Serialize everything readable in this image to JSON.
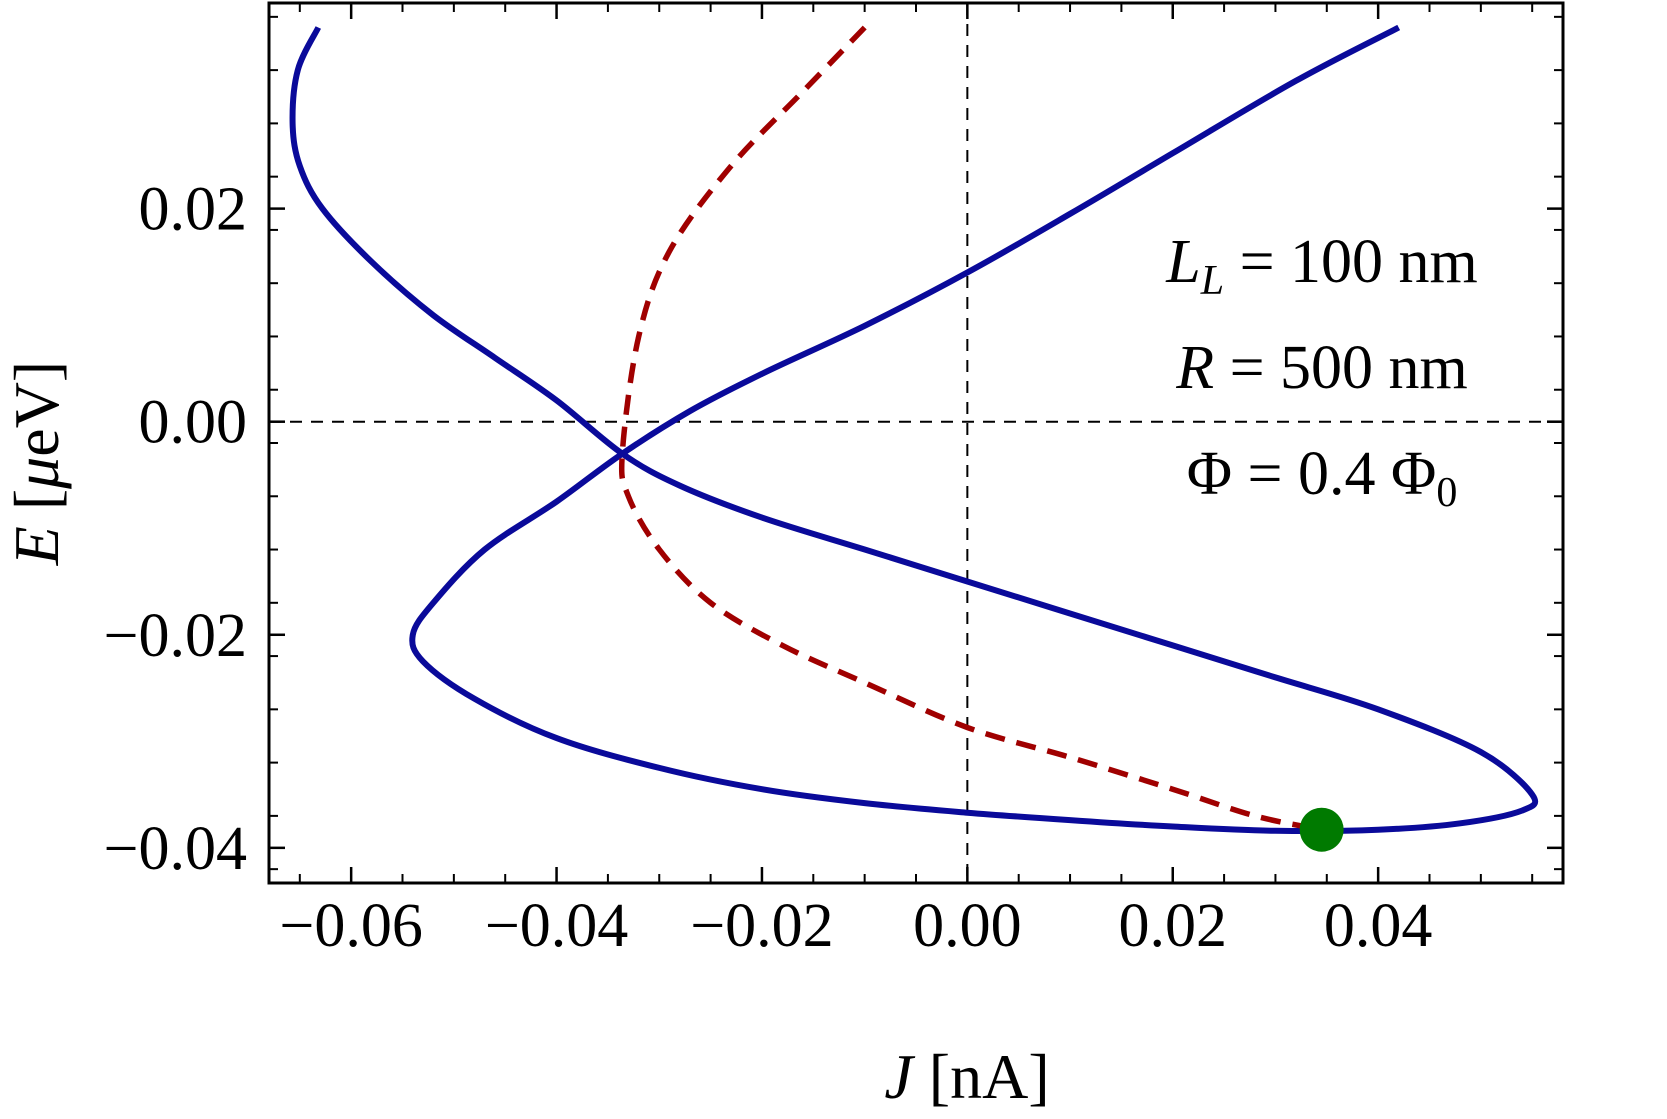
{
  "chart_data": {
    "type": "line",
    "xlabel": {
      "var": "J",
      "unit": "[nA]"
    },
    "ylabel": {
      "var": "E",
      "unit": "[μeV]",
      "mu": "μ",
      "rest": "eV]",
      "open": "["
    },
    "xlim": [
      -0.068,
      0.058
    ],
    "ylim": [
      -0.0433,
      0.0393
    ],
    "x_ticks": [
      {
        "v": -0.06,
        "label": "−0.06"
      },
      {
        "v": -0.04,
        "label": "−0.04"
      },
      {
        "v": -0.02,
        "label": "−0.02"
      },
      {
        "v": 0.0,
        "label": "0.00"
      },
      {
        "v": 0.02,
        "label": "0.02"
      },
      {
        "v": 0.04,
        "label": "0.04"
      }
    ],
    "y_ticks": [
      {
        "v": 0.02,
        "label": "0.02"
      },
      {
        "v": 0.0,
        "label": "0.00"
      },
      {
        "v": -0.02,
        "label": "−0.02"
      },
      {
        "v": -0.04,
        "label": "−0.04"
      }
    ],
    "grid": false,
    "zero_lines": true,
    "annotations": [
      {
        "lhs": "L",
        "sub": "L",
        "rhs": " = 100 nm"
      },
      {
        "lhs": "R",
        "sub": "",
        "rhs": " = 500 nm"
      },
      {
        "lhs": "Φ",
        "sub": "",
        "rhs": " = 0.4 Φ",
        "tail_sub": "0"
      }
    ],
    "series": [
      {
        "style": "solid",
        "color": "#0a0a9a",
        "x": [
          -0.0632,
          -0.0652,
          -0.0657,
          -0.065,
          -0.0628,
          -0.058,
          -0.052,
          -0.046,
          -0.04,
          -0.0336,
          -0.028,
          -0.02,
          -0.01,
          0.0,
          0.01,
          0.02,
          0.03,
          0.04,
          0.05,
          0.055,
          0.054,
          0.048,
          0.04,
          0.03,
          0.02,
          0.01,
          0.0,
          -0.01,
          -0.02,
          -0.03,
          -0.04,
          -0.048,
          -0.053,
          -0.054,
          -0.052,
          -0.047,
          -0.04,
          -0.0336,
          -0.027,
          -0.02,
          -0.01,
          0.0,
          0.01,
          0.02,
          0.032,
          0.042
        ],
        "y": [
          0.037,
          0.033,
          0.028,
          0.024,
          0.02,
          0.015,
          0.01,
          0.006,
          0.002,
          -0.003,
          -0.006,
          -0.009,
          -0.012,
          -0.015,
          -0.018,
          -0.021,
          -0.024,
          -0.027,
          -0.031,
          -0.035,
          -0.0365,
          -0.0377,
          -0.0383,
          -0.0384,
          -0.038,
          -0.0374,
          -0.0367,
          -0.0358,
          -0.0345,
          -0.0325,
          -0.0297,
          -0.026,
          -0.0225,
          -0.02,
          -0.017,
          -0.012,
          -0.0075,
          -0.003,
          0.001,
          0.0045,
          0.009,
          0.014,
          0.0195,
          0.0252,
          0.032,
          0.037
        ]
      },
      {
        "style": "dashed",
        "color": "#a00000",
        "x": [
          -0.01,
          -0.016,
          -0.023,
          -0.029,
          -0.032,
          -0.0336,
          -0.033,
          -0.03,
          -0.025,
          -0.018,
          -0.01,
          0.0,
          0.01,
          0.02,
          0.028,
          0.0345
        ],
        "y": [
          0.037,
          0.031,
          0.024,
          0.016,
          0.008,
          -0.003,
          -0.007,
          -0.012,
          -0.017,
          -0.021,
          -0.0245,
          -0.0287,
          -0.0315,
          -0.0345,
          -0.037,
          -0.0383
        ]
      }
    ],
    "points": [
      {
        "x": 0.0345,
        "y": -0.0383,
        "color": "#007a00"
      }
    ]
  }
}
